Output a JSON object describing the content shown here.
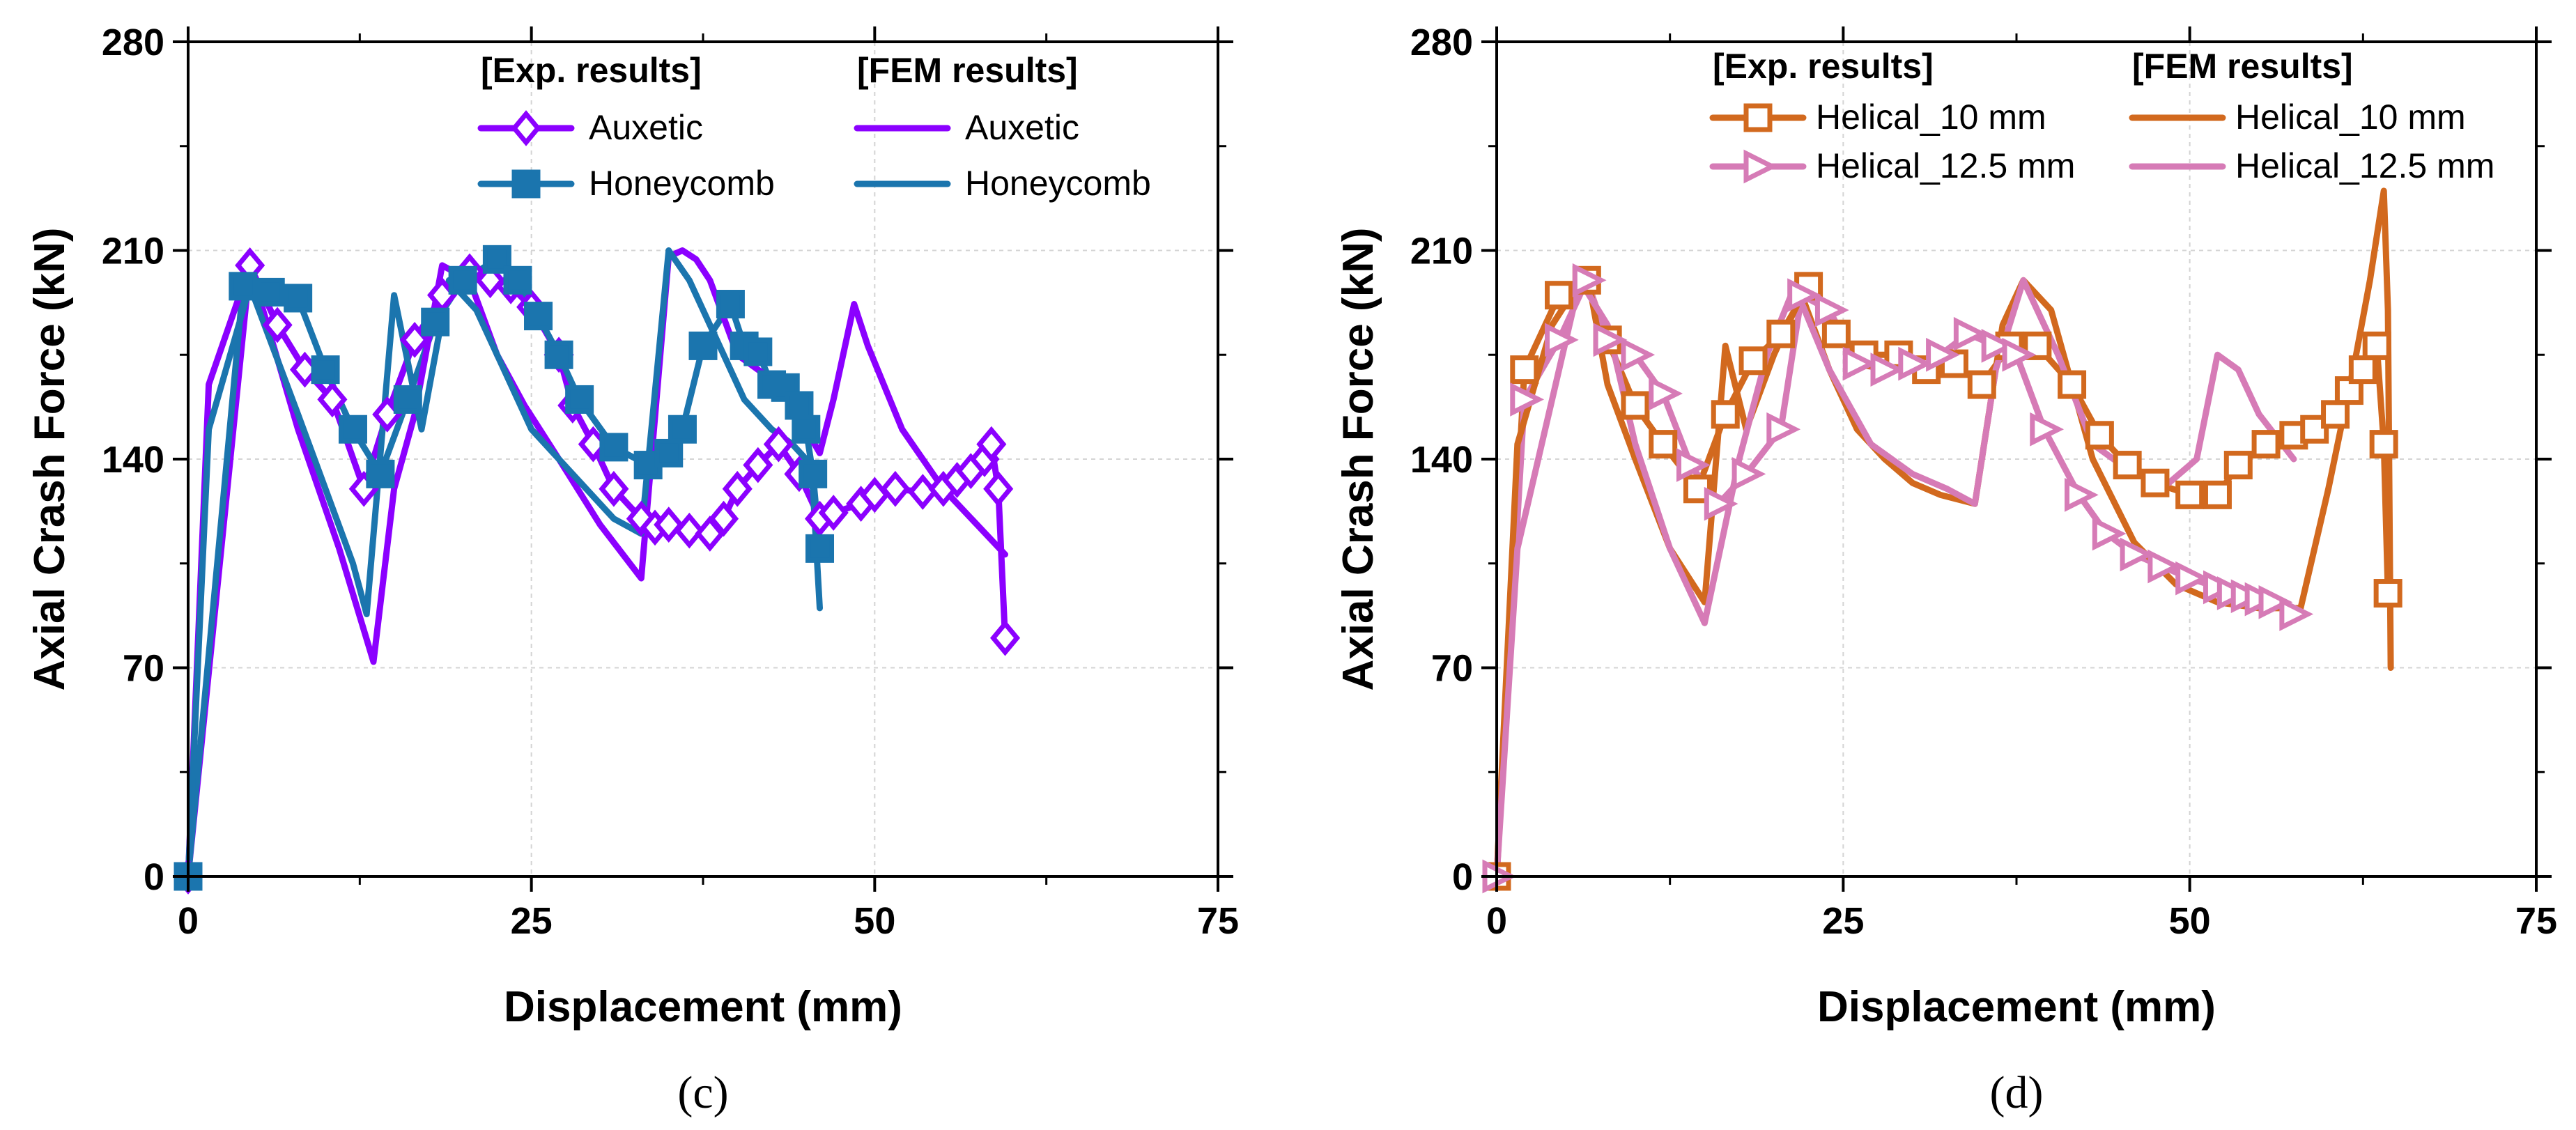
{
  "chart_data": [
    {
      "type": "line",
      "panel_label": "(c)",
      "xlabel": "Displacement (mm)",
      "ylabel": "Axial Crash Force (kN)",
      "xlim": [
        0,
        75
      ],
      "ylim": [
        0,
        280
      ],
      "xticks": [
        0,
        25,
        50,
        75
      ],
      "yticks": [
        0,
        70,
        140,
        210,
        280
      ],
      "grid": true,
      "legend": {
        "placement": "top-right",
        "exp_heading": "[Exp. results]",
        "fem_heading": "[FEM results]"
      },
      "series": [
        {
          "name": "Auxetic",
          "group": "exp",
          "color": "#8B00FF",
          "marker": "diamond",
          "x": [
            0,
            4.5,
            6.5,
            8.5,
            10.5,
            12.8,
            14.5,
            16.5,
            18.5,
            20.5,
            22,
            23.5,
            25,
            27,
            28,
            29.5,
            31,
            33,
            34,
            35,
            36.5,
            38,
            39,
            40,
            41.5,
            43,
            44.5,
            46,
            47,
            49,
            50,
            51.5,
            53.5,
            55,
            56,
            57,
            58,
            58.5,
            59,
            59.5
          ],
          "y": [
            0,
            205,
            185,
            170,
            160,
            130,
            155,
            180,
            195,
            203,
            200,
            198,
            191,
            175,
            158,
            145,
            130,
            120,
            117,
            118,
            116,
            115,
            120,
            130,
            138,
            145,
            135,
            120,
            122,
            125,
            128,
            130,
            129,
            130,
            133,
            136,
            140,
            145,
            130,
            80
          ]
        },
        {
          "name": "Honeycomb",
          "group": "exp",
          "color": "#1B75AE",
          "marker": "square",
          "x": [
            0,
            4,
            6,
            8,
            10,
            12,
            14,
            16,
            18,
            20,
            22.5,
            24,
            25.5,
            27,
            28.5,
            31,
            33.5,
            35,
            36,
            37.5,
            39.5,
            40.5,
            41.5,
            42.5,
            43.5,
            44.5,
            45,
            45.5,
            46
          ],
          "y": [
            0,
            198,
            196,
            194,
            170,
            150,
            135,
            160,
            186,
            200,
            207,
            200,
            188,
            175,
            160,
            144,
            138,
            142,
            150,
            178,
            192,
            178,
            176,
            165,
            164,
            158,
            150,
            135,
            110
          ]
        },
        {
          "name": "Auxetic",
          "group": "fem",
          "color": "#8B00FF",
          "marker": "none",
          "x": [
            0,
            1.5,
            4.5,
            8,
            11,
            13.5,
            15,
            16.5,
            18.5,
            20.5,
            22.5,
            24.5,
            27,
            30,
            33,
            35,
            36,
            37,
            38,
            40,
            43,
            45,
            46,
            47,
            48.5,
            49.5,
            52,
            55,
            59.5
          ],
          "y": [
            0,
            165,
            205,
            150,
            110,
            72,
            130,
            155,
            205,
            200,
            175,
            158,
            140,
            118,
            100,
            208,
            210,
            207,
            200,
            175,
            165,
            150,
            142,
            160,
            192,
            178,
            150,
            130,
            108
          ]
        },
        {
          "name": "Honeycomb",
          "group": "fem",
          "color": "#1B75AE",
          "marker": "none",
          "x": [
            0,
            1.5,
            4.5,
            8,
            12,
            13,
            15,
            17,
            19,
            21,
            23,
            25,
            28,
            31,
            33,
            35,
            36.5,
            38,
            40.5,
            42.5,
            44,
            45,
            45.5,
            46
          ],
          "y": [
            0,
            150,
            198,
            155,
            105,
            88,
            195,
            150,
            200,
            190,
            170,
            150,
            135,
            120,
            115,
            210,
            200,
            185,
            160,
            150,
            145,
            140,
            130,
            90
          ]
        }
      ]
    },
    {
      "type": "line",
      "panel_label": "(d)",
      "xlabel": "Displacement (mm)",
      "ylabel": "Axial Crash Force (kN)",
      "xlim": [
        0,
        75
      ],
      "ylim": [
        0,
        280
      ],
      "xticks": [
        0,
        25,
        50,
        75
      ],
      "yticks": [
        0,
        70,
        140,
        210,
        280
      ],
      "grid": true,
      "legend": {
        "placement": "top-right",
        "exp_heading": "[Exp. results]",
        "fem_heading": "[FEM results]"
      },
      "series": [
        {
          "name": "Helical_10 mm",
          "group": "exp",
          "color": "#D2691E",
          "marker": "square",
          "x": [
            0,
            2,
            4.5,
            6.5,
            8,
            10,
            12,
            14.5,
            16.5,
            18.5,
            20.5,
            22.5,
            24.5,
            26.5,
            29,
            31,
            33,
            35,
            37,
            39,
            41.5,
            43.5,
            45.5,
            47.5,
            50,
            52,
            53.5,
            55.5,
            57.5,
            59,
            60.5,
            61.5,
            62.5,
            63.5,
            64,
            64.3
          ],
          "y": [
            0,
            170,
            195,
            200,
            180,
            158,
            145,
            130,
            155,
            173,
            182,
            198,
            182,
            175,
            175,
            170,
            172,
            165,
            178,
            178,
            165,
            148,
            138,
            132,
            128,
            128,
            138,
            145,
            148,
            150,
            155,
            163,
            170,
            178,
            145,
            95
          ]
        },
        {
          "name": "Helical_12.5 mm",
          "group": "exp",
          "color": "#D67BB6",
          "marker": "triangle-right",
          "x": [
            0,
            2,
            4.5,
            6.5,
            8,
            10,
            12,
            14,
            16,
            18,
            20.5,
            22,
            24,
            26,
            28,
            30,
            32,
            34,
            36,
            37.5,
            39.5,
            42,
            44,
            46,
            48,
            50,
            52,
            53,
            54,
            55,
            56,
            57.5
          ],
          "y": [
            0,
            160,
            180,
            200,
            180,
            175,
            162,
            138,
            125,
            135,
            150,
            195,
            190,
            172,
            170,
            172,
            175,
            182,
            178,
            175,
            150,
            128,
            115,
            108,
            104,
            100,
            97,
            95,
            94,
            93,
            92,
            88
          ]
        },
        {
          "name": "Helical_10 mm",
          "group": "fem",
          "color": "#D2691E",
          "marker": "none",
          "x": [
            0,
            1.5,
            4,
            6.5,
            8,
            10,
            12.5,
            15,
            16.5,
            18,
            20,
            22,
            24,
            26,
            28,
            30,
            32,
            34.5,
            36.5,
            38,
            40,
            43,
            46,
            49,
            52,
            55,
            58,
            60,
            62,
            63,
            64,
            64.3,
            64.5
          ],
          "y": [
            0,
            145,
            185,
            203,
            165,
            140,
            110,
            92,
            178,
            150,
            175,
            195,
            170,
            150,
            140,
            132,
            128,
            125,
            185,
            200,
            190,
            140,
            112,
            98,
            92,
            90,
            90,
            130,
            175,
            200,
            230,
            190,
            70
          ]
        },
        {
          "name": "Helical_12.5 mm",
          "group": "fem",
          "color": "#D67BB6",
          "marker": "none",
          "x": [
            0,
            1.5,
            3.5,
            6,
            8,
            10,
            12.5,
            15,
            17.5,
            19.5,
            21.5,
            24,
            27,
            30,
            32.5,
            34.5,
            36,
            38,
            40.5,
            43,
            46,
            48.5,
            50.5,
            52,
            53.5,
            55,
            57.5
          ],
          "y": [
            0,
            110,
            150,
            200,
            185,
            145,
            110,
            85,
            140,
            175,
            198,
            170,
            145,
            135,
            130,
            125,
            170,
            200,
            175,
            145,
            135,
            132,
            140,
            175,
            170,
            155,
            140
          ]
        }
      ]
    }
  ]
}
